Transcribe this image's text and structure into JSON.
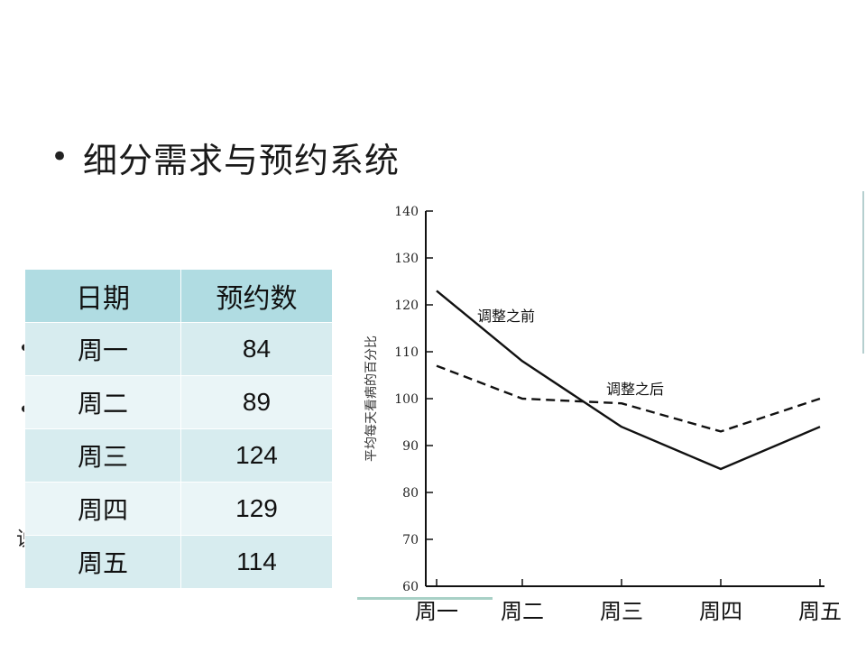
{
  "slide": {
    "bullet": "•",
    "title": "细分需求与预约系统",
    "hidden_bullets": [
      "•",
      "•",
      "说"
    ]
  },
  "table": {
    "headers": [
      "日期",
      "预约数"
    ],
    "rows": [
      {
        "day": "周一",
        "count": "84"
      },
      {
        "day": "周二",
        "count": "89"
      },
      {
        "day": "周三",
        "count": "124"
      },
      {
        "day": "周四",
        "count": "129"
      },
      {
        "day": "周五",
        "count": "114"
      }
    ]
  },
  "chart_data": {
    "type": "line",
    "categories": [
      "周一",
      "周二",
      "周三",
      "周四",
      "周五"
    ],
    "ylabel": "平均每天看病的百分比",
    "ylim": [
      60,
      140
    ],
    "yticks": [
      60,
      70,
      80,
      90,
      100,
      110,
      120,
      130,
      140
    ],
    "series": [
      {
        "name": "调整之前",
        "style": "solid",
        "values": [
          123,
          108,
          94,
          85,
          94
        ]
      },
      {
        "name": "调整之后",
        "style": "dashed",
        "values": [
          107,
          100,
          99,
          93,
          100
        ]
      }
    ]
  }
}
